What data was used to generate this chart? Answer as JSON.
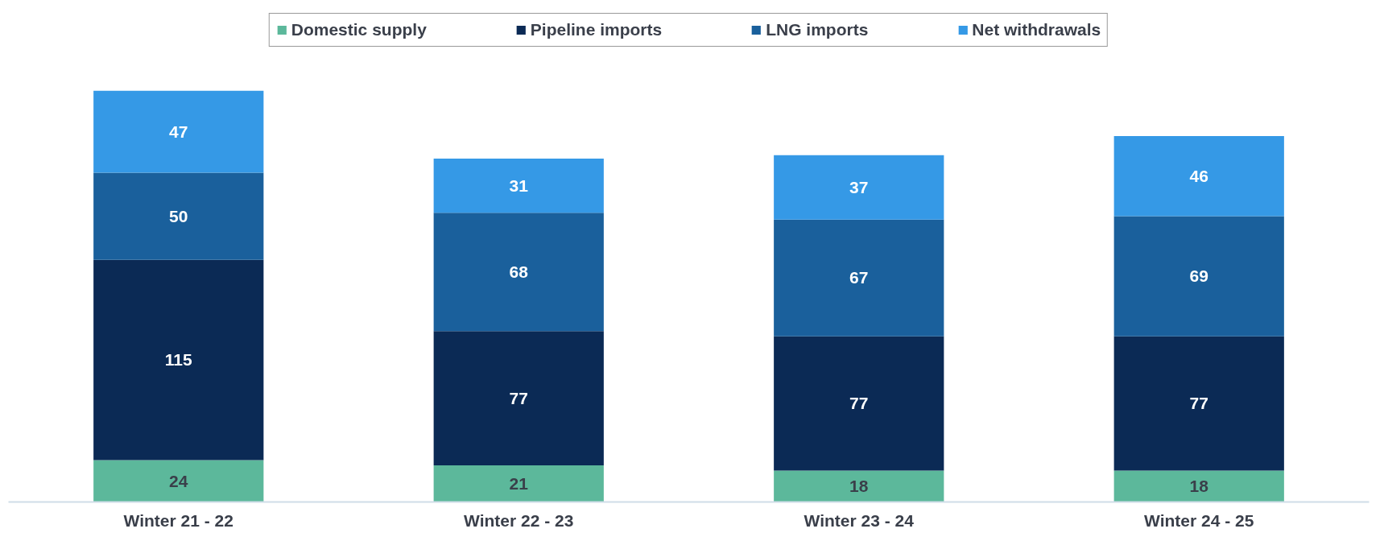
{
  "chart_data": {
    "type": "bar",
    "stacked": true,
    "data_labels": true,
    "legend": "top",
    "grid": false,
    "categories": [
      "Winter 21 - 22",
      "Winter 22 - 23",
      "Winter 23 - 24",
      "Winter 24 - 25"
    ],
    "series": [
      {
        "name": "Domestic supply",
        "color": "#5cb89b",
        "values": [
          24,
          21,
          18,
          18
        ]
      },
      {
        "name": "Pipeline imports",
        "color": "#0b2a55",
        "values": [
          115,
          77,
          77,
          77
        ]
      },
      {
        "name": "LNG imports",
        "color": "#1a609c",
        "values": [
          50,
          68,
          67,
          69
        ]
      },
      {
        "name": "Net withdrawals",
        "color": "#3599e6",
        "values": [
          47,
          31,
          37,
          46
        ]
      }
    ]
  }
}
